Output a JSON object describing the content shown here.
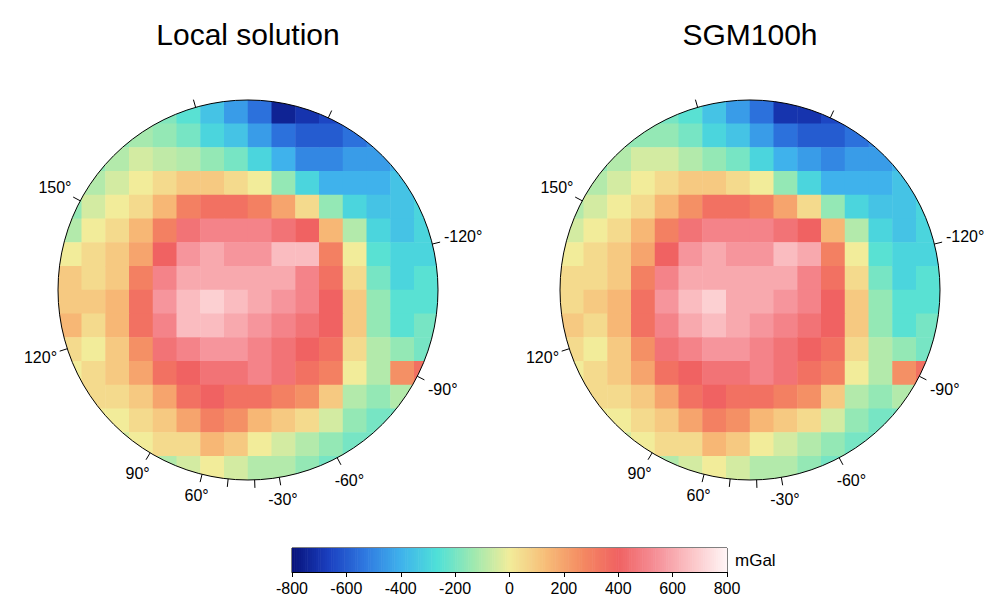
{
  "chart_data": {
    "type": "heatmap",
    "panels": [
      {
        "type": "heatmap",
        "title": "Local solution",
        "tick_labels": false,
        "boundary_labels": [
          "150°",
          "-120°",
          "120°",
          "-90°",
          "90°",
          "-60°",
          "60°",
          "-30°"
        ],
        "cells": [
          [
            null,
            null,
            null,
            -150,
            -180,
            -250,
            -350,
            -450,
            -550,
            -750,
            -700,
            -650,
            -600,
            null,
            null,
            null
          ],
          [
            null,
            null,
            -150,
            -120,
            -150,
            -200,
            -300,
            -350,
            -450,
            -550,
            -600,
            -600,
            -550,
            -500,
            null,
            null
          ],
          [
            null,
            -150,
            -100,
            -50,
            -80,
            -100,
            -150,
            -200,
            -300,
            -400,
            -500,
            -500,
            -450,
            -450,
            -400,
            null
          ],
          [
            -200,
            -100,
            -50,
            0,
            50,
            100,
            100,
            50,
            0,
            -150,
            -300,
            -400,
            -400,
            -400,
            -350,
            -350
          ],
          [
            -150,
            -50,
            0,
            50,
            150,
            300,
            350,
            350,
            300,
            200,
            50,
            -150,
            -300,
            -350,
            -350,
            -300
          ],
          [
            -100,
            0,
            50,
            150,
            300,
            450,
            500,
            500,
            500,
            450,
            400,
            150,
            -100,
            -300,
            -350,
            -300
          ],
          [
            0,
            50,
            100,
            200,
            400,
            550,
            600,
            550,
            550,
            650,
            650,
            300,
            0,
            -250,
            -300,
            -300
          ],
          [
            100,
            50,
            100,
            300,
            500,
            600,
            600,
            600,
            600,
            600,
            500,
            350,
            50,
            -200,
            -300,
            -250
          ],
          [
            100,
            100,
            150,
            350,
            550,
            650,
            700,
            650,
            600,
            550,
            500,
            400,
            100,
            -150,
            -250,
            -250
          ],
          [
            150,
            50,
            150,
            350,
            500,
            650,
            650,
            600,
            550,
            500,
            450,
            400,
            100,
            -150,
            -250,
            -200
          ],
          [
            50,
            0,
            100,
            250,
            450,
            500,
            550,
            550,
            500,
            450,
            400,
            350,
            50,
            -100,
            -150,
            -200
          ],
          [
            0,
            50,
            100,
            200,
            350,
            400,
            450,
            450,
            500,
            450,
            350,
            300,
            0,
            -100,
            250,
            350
          ],
          [
            0,
            50,
            50,
            100,
            200,
            350,
            400,
            350,
            350,
            300,
            250,
            100,
            -100,
            -150,
            -100,
            -150
          ],
          [
            null,
            0,
            0,
            50,
            100,
            200,
            300,
            250,
            150,
            100,
            50,
            -50,
            -150,
            -200,
            -200,
            null
          ],
          [
            null,
            null,
            -50,
            0,
            50,
            50,
            150,
            100,
            0,
            -50,
            -100,
            -150,
            -200,
            -200,
            null,
            null
          ],
          [
            null,
            null,
            null,
            -50,
            -100,
            -50,
            0,
            -50,
            -100,
            -100,
            -150,
            -200,
            -200,
            null,
            null,
            null
          ]
        ]
      },
      {
        "type": "heatmap",
        "title": "SGM100h",
        "tick_labels": false,
        "boundary_labels": [
          "150°",
          "-120°",
          "120°",
          "-90°",
          "90°",
          "-60°",
          "60°",
          "-30°"
        ],
        "cells": [
          [
            null,
            null,
            null,
            -150,
            -200,
            -250,
            -350,
            -450,
            -550,
            -700,
            -700,
            -650,
            -600,
            null,
            null,
            null
          ],
          [
            null,
            null,
            -150,
            -150,
            -150,
            -200,
            -300,
            -350,
            -450,
            -550,
            -600,
            -600,
            -550,
            -500,
            null,
            null
          ],
          [
            null,
            -150,
            -100,
            -50,
            -50,
            -100,
            -150,
            -200,
            -300,
            -400,
            -450,
            -500,
            -450,
            -450,
            -400,
            null
          ],
          [
            -150,
            -100,
            -50,
            0,
            50,
            100,
            100,
            50,
            0,
            -150,
            -300,
            -400,
            -400,
            -400,
            -350,
            -350
          ],
          [
            -100,
            -50,
            0,
            50,
            150,
            250,
            350,
            350,
            300,
            200,
            50,
            -150,
            -300,
            -350,
            -350,
            -300
          ],
          [
            -50,
            0,
            50,
            150,
            300,
            450,
            500,
            500,
            500,
            450,
            400,
            150,
            -100,
            -300,
            -350,
            -300
          ],
          [
            0,
            50,
            100,
            200,
            400,
            550,
            600,
            550,
            550,
            650,
            600,
            300,
            0,
            -250,
            -300,
            -300
          ],
          [
            50,
            50,
            100,
            300,
            500,
            600,
            600,
            600,
            600,
            600,
            500,
            350,
            50,
            -200,
            -300,
            -250
          ],
          [
            50,
            100,
            150,
            350,
            550,
            650,
            700,
            600,
            600,
            550,
            500,
            400,
            100,
            -150,
            -250,
            -250
          ],
          [
            100,
            50,
            150,
            350,
            500,
            600,
            650,
            600,
            550,
            500,
            450,
            400,
            100,
            -150,
            -250,
            -200
          ],
          [
            50,
            0,
            100,
            250,
            450,
            500,
            550,
            550,
            500,
            450,
            400,
            350,
            50,
            -100,
            -150,
            -200
          ],
          [
            0,
            50,
            100,
            200,
            350,
            400,
            450,
            450,
            500,
            450,
            350,
            300,
            0,
            -100,
            250,
            350
          ],
          [
            0,
            50,
            50,
            100,
            200,
            350,
            400,
            350,
            350,
            300,
            250,
            100,
            -100,
            -150,
            -100,
            -150
          ],
          [
            null,
            0,
            0,
            50,
            100,
            200,
            300,
            250,
            150,
            100,
            50,
            -50,
            -150,
            -200,
            -200,
            null
          ],
          [
            null,
            null,
            -50,
            0,
            50,
            50,
            150,
            100,
            0,
            -50,
            -100,
            -150,
            -200,
            -200,
            null,
            null
          ],
          [
            null,
            null,
            null,
            -50,
            -100,
            -50,
            0,
            -50,
            -100,
            -100,
            -150,
            -200,
            -200,
            null,
            null,
            null
          ]
        ]
      }
    ],
    "colorbar": {
      "range": [
        -800,
        800
      ],
      "ticks": [
        -800,
        -600,
        -400,
        -200,
        0,
        200,
        400,
        600,
        800
      ],
      "label": "mGal",
      "colors": [
        "#08127a",
        "#1a3fbf",
        "#2f78e0",
        "#3fb2ec",
        "#4fe0d8",
        "#9ee9b0",
        "#f2ec9a",
        "#f7bd78",
        "#f48a62",
        "#f06262",
        "#f58e96",
        "#fbc3c6",
        "#fff6f6"
      ]
    }
  }
}
